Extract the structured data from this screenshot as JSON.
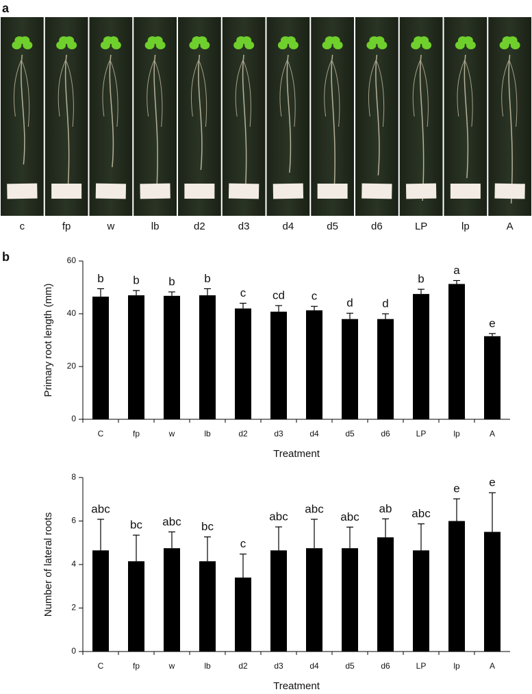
{
  "panel_labels": [
    "a",
    "b"
  ],
  "photo_labels": [
    "c",
    "fp",
    "w",
    "lb",
    "d2",
    "d3",
    "d4",
    "d5",
    "d6",
    "LP",
    "lp",
    "A"
  ],
  "chart_data": [
    {
      "type": "bar",
      "ylabel": "Primary root length (mm)",
      "xlabel": "Treatment",
      "categories": [
        "C",
        "fp",
        "w",
        "lb",
        "d2",
        "d3",
        "d4",
        "d5",
        "d6",
        "LP",
        "lp",
        "A"
      ],
      "values": [
        46.5,
        47,
        46.8,
        47,
        42,
        40.8,
        41.3,
        38,
        38,
        47.5,
        51.3,
        31.5
      ],
      "errors": [
        3,
        1.8,
        1.5,
        2.5,
        2,
        2.3,
        1.5,
        2.2,
        2,
        1.8,
        1.3,
        1
      ],
      "annotations": [
        "b",
        "b",
        "b",
        "b",
        "c",
        "cd",
        "c",
        "d",
        "d",
        "b",
        "a",
        "e"
      ],
      "color": "#000000",
      "ylim": [
        0,
        60
      ],
      "yticks": [
        0,
        20,
        40,
        60
      ]
    },
    {
      "type": "bar",
      "ylabel": "Number of lateral roots",
      "xlabel": "Treatment",
      "categories": [
        "C",
        "fp",
        "w",
        "lb",
        "d2",
        "d3",
        "d4",
        "d5",
        "d6",
        "LP",
        "lp",
        "A"
      ],
      "values": [
        4.65,
        4.15,
        4.75,
        4.15,
        3.4,
        4.65,
        4.75,
        4.75,
        5.25,
        4.65,
        6.0,
        5.5
      ],
      "errors": [
        1.43,
        1.2,
        0.75,
        1.12,
        1.08,
        1.08,
        1.33,
        0.97,
        0.85,
        1.22,
        1.02,
        1.8
      ],
      "annotations": [
        "abc",
        "bc",
        "abc",
        "bc",
        "c",
        "abc",
        "abc",
        "abc",
        "ab",
        "abc",
        "e",
        "e"
      ],
      "color": "#000000",
      "ylim": [
        0,
        8
      ],
      "yticks": [
        0,
        2,
        4,
        6,
        8
      ]
    }
  ]
}
